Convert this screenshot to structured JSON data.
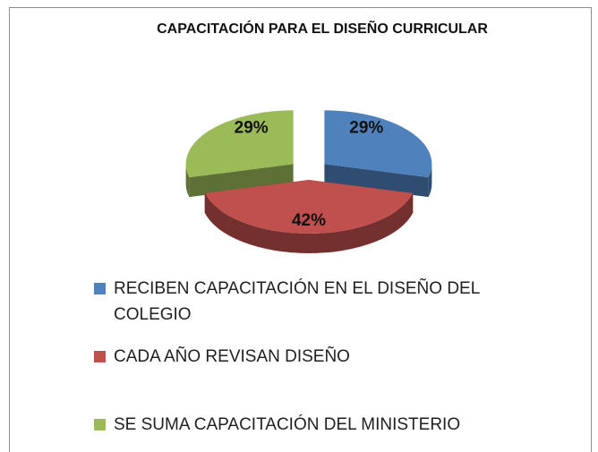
{
  "chart_data": {
    "type": "pie3d",
    "title": "CAPACITACIÓN PARA EL DISEÑO CURRICULAR",
    "categories": [
      "RECIBEN CAPACITACIÓN EN EL DISEÑO DEL COLEGIO",
      "CADA AÑO REVISAN DISEÑO",
      "SE SUMA CAPACITACIÓN DEL MINISTERIO"
    ],
    "values": [
      29,
      42,
      29
    ],
    "value_labels": [
      "29%",
      "42%",
      "29%"
    ],
    "colors": [
      "#4f81bd",
      "#c0504d",
      "#9bbb59"
    ],
    "legend": "bottom"
  }
}
